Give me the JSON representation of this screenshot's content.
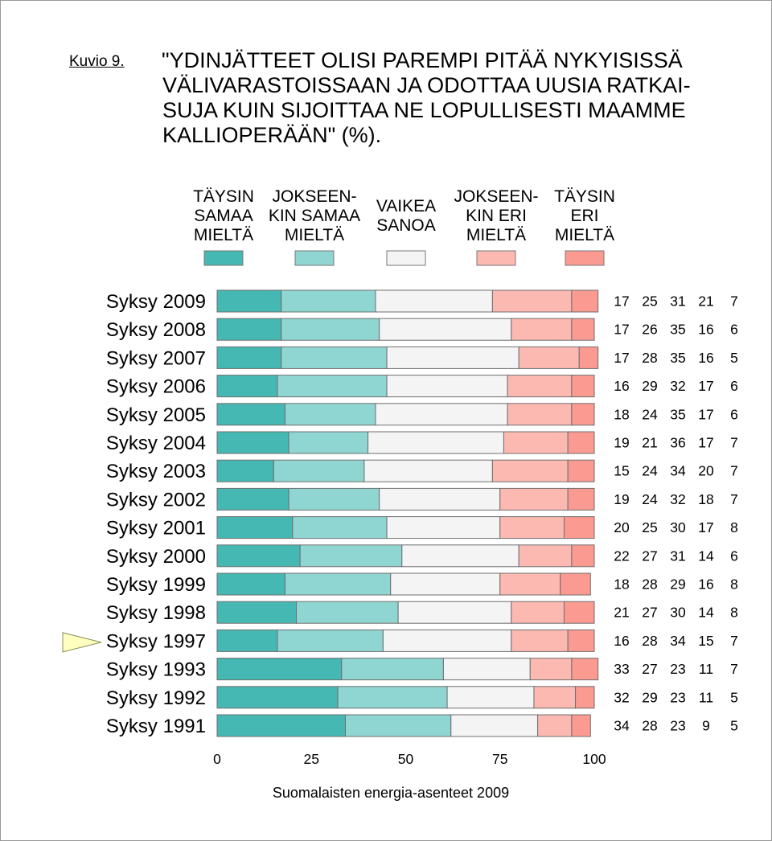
{
  "figure": {
    "label": "Kuvio 9.",
    "title_lines": [
      "\"YDINJÄTTEET OLISI PAREMPI PITÄÄ NYKYISISSÄ",
      "VÄLIVARASTOISSAAN JA ODOTTAA UUSIA RATKAI-",
      "SUJA KUIN SIJOITTAA NE LOPULLISESTI MAAMME",
      "KALLIOPERÄÄN\" (%)."
    ],
    "source": "Suomalaisten energia-asenteet 2009"
  },
  "chart_data": {
    "type": "bar",
    "orientation": "horizontal",
    "stacked": true,
    "title": "\"YDINJÄTTEET OLISI PAREMPI PITÄÄ NYKYISISSÄ VÄLIVARASTOISSAAN JA ODOTTAA UUSIA RATKAISUJA KUIN SIJOITTAA NE LOPULLISESTI MAAMME KALLIOPERÄÄN\" (%).",
    "xlabel": "",
    "ylabel": "",
    "xlim": [
      0,
      100
    ],
    "x_ticks": [
      0,
      25,
      50,
      75,
      100
    ],
    "grid": false,
    "legend_position": "top",
    "categories": [
      "Syksy 2009",
      "Syksy 2008",
      "Syksy 2007",
      "Syksy 2006",
      "Syksy 2005",
      "Syksy 2004",
      "Syksy 2003",
      "Syksy 2002",
      "Syksy 2001",
      "Syksy 2000",
      "Syksy 1999",
      "Syksy 1998",
      "Syksy 1997",
      "Syksy 1993",
      "Syksy 1992",
      "Syksy 1991"
    ],
    "marked_category": "Syksy 1997",
    "marker_color": "#ffffc0",
    "series": [
      {
        "name_lines": [
          "TÄYSIN",
          "SAMAA",
          "MIELTÄ"
        ],
        "color": "#45b8b3",
        "values": [
          17,
          17,
          17,
          16,
          18,
          19,
          15,
          19,
          20,
          22,
          18,
          21,
          16,
          33,
          32,
          34
        ]
      },
      {
        "name_lines": [
          "JOKSEEN-",
          "KIN SAMAA",
          "MIELTÄ"
        ],
        "color": "#8fd6d2",
        "values": [
          25,
          26,
          28,
          29,
          24,
          21,
          24,
          24,
          25,
          27,
          28,
          27,
          28,
          27,
          29,
          28
        ]
      },
      {
        "name_lines": [
          "VAIKEA",
          "SANOA"
        ],
        "color": "#f4f4f4",
        "values": [
          31,
          35,
          35,
          32,
          35,
          36,
          34,
          32,
          30,
          31,
          29,
          30,
          34,
          23,
          23,
          23
        ]
      },
      {
        "name_lines": [
          "JOKSEEN-",
          "KIN ERI",
          "MIELTÄ"
        ],
        "color": "#fcb9b1",
        "values": [
          21,
          16,
          16,
          17,
          17,
          17,
          20,
          18,
          17,
          14,
          16,
          14,
          15,
          11,
          11,
          9
        ]
      },
      {
        "name_lines": [
          "TÄYSIN",
          "ERI",
          "MIELTÄ"
        ],
        "color": "#fb9a90",
        "values": [
          7,
          6,
          5,
          6,
          6,
          7,
          7,
          7,
          8,
          6,
          8,
          8,
          7,
          7,
          5,
          5
        ]
      }
    ]
  }
}
